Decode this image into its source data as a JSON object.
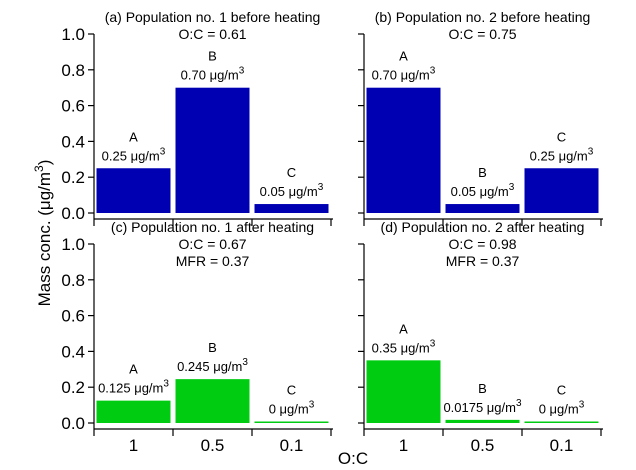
{
  "figure": {
    "ylabel": "Mass conc. (μg/m",
    "ylabel_sup": "3",
    "ylabel_close": ")",
    "xlabel": "O:C"
  },
  "colors": {
    "before": "#0000b3",
    "after": "#00cc11"
  },
  "chart_data": [
    {
      "type": "bar",
      "panel": "a",
      "title": "(a) Population no. 1 before heating",
      "subtitle": [
        "O:C = 0.61"
      ],
      "categories": [
        "1",
        "0.5",
        "0.1"
      ],
      "bar_letters": [
        "A",
        "B",
        "C"
      ],
      "values": [
        0.25,
        0.7,
        0.05
      ],
      "value_labels": [
        "0.25 μg/m",
        "0.70 μg/m",
        "0.05 μg/m"
      ],
      "ylim": [
        0,
        1.0
      ],
      "yticks": [
        "0.0",
        "0.2",
        "0.4",
        "0.6",
        "0.8",
        "1.0"
      ],
      "color": "#0000b3"
    },
    {
      "type": "bar",
      "panel": "b",
      "title": "(b) Population no. 2 before heating",
      "subtitle": [
        "O:C = 0.75"
      ],
      "categories": [
        "1",
        "0.5",
        "0.1"
      ],
      "bar_letters": [
        "A",
        "B",
        "C"
      ],
      "values": [
        0.7,
        0.05,
        0.25
      ],
      "value_labels": [
        "0.70 μg/m",
        "0.05 μg/m",
        "0.25 μg/m"
      ],
      "ylim": [
        0,
        1.0
      ],
      "color": "#0000b3"
    },
    {
      "type": "bar",
      "panel": "c",
      "title": "(c) Population no. 1 after heating",
      "subtitle": [
        "O:C = 0.67",
        "MFR = 0.37"
      ],
      "categories": [
        "1",
        "0.5",
        "0.1"
      ],
      "bar_letters": [
        "A",
        "B",
        "C"
      ],
      "values": [
        0.125,
        0.245,
        0
      ],
      "value_labels": [
        "0.125 μg/m",
        "0.245 μg/m",
        "0 μg/m"
      ],
      "ylim": [
        0,
        1.0
      ],
      "yticks": [
        "0.0",
        "0.2",
        "0.4",
        "0.6",
        "0.8",
        "1.0"
      ],
      "xticks": [
        "1",
        "0.5",
        "0.1"
      ],
      "color": "#00cc11"
    },
    {
      "type": "bar",
      "panel": "d",
      "title": "(d) Population no. 2 after heating",
      "subtitle": [
        "O:C = 0.98",
        "MFR = 0.37"
      ],
      "categories": [
        "1",
        "0.5",
        "0.1"
      ],
      "bar_letters": [
        "A",
        "B",
        "C"
      ],
      "values": [
        0.35,
        0.0175,
        0
      ],
      "value_labels": [
        "0.35 μg/m",
        "0.0175 μg/m",
        "0 μg/m"
      ],
      "ylim": [
        0,
        1.0
      ],
      "xticks": [
        "1",
        "0.5",
        "0.1"
      ],
      "color": "#00cc11"
    }
  ]
}
